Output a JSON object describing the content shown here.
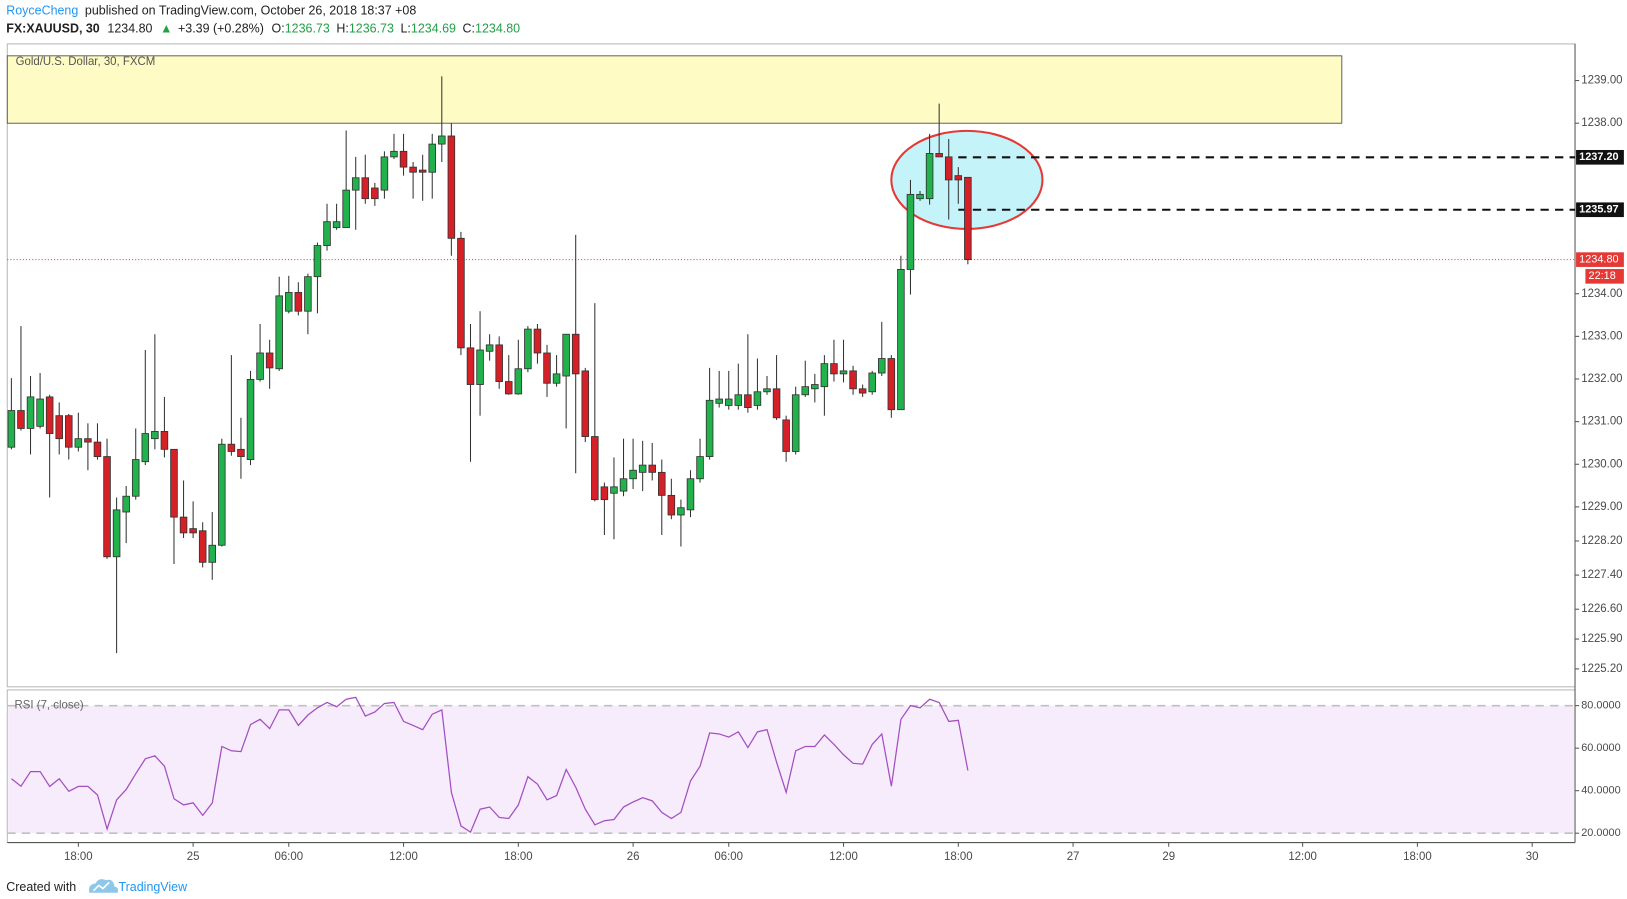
{
  "header": {
    "author": "RoyceCheng",
    "published": "published on TradingView.com, October 26, 2018 18:37 +08",
    "symbol": "FX:XAUUSD, 30",
    "price": "1234.80",
    "arrow": "▲",
    "change": "+3.39 (+0.28%)",
    "ohlc": [
      {
        "label": "O:",
        "value": "1236.73"
      },
      {
        "label": "H:",
        "value": "1236.73"
      },
      {
        "label": "L:",
        "value": "1234.69"
      },
      {
        "label": "C:",
        "value": "1234.80"
      }
    ]
  },
  "footer": {
    "created": "Created with",
    "brand": "TradingView"
  },
  "chart_data": [
    {
      "type": "candlestick",
      "up_color": "#22b14c",
      "down_color": "#d62027",
      "border_color": "#333333",
      "xlim": [
        -0.43,
        163.48
      ],
      "ylim": [
        1224.78,
        1239.86
      ],
      "yticks": [
        {
          "value": 1239,
          "label": "1239.00"
        },
        {
          "value": 1238,
          "label": "1238.00"
        },
        {
          "value": 1234,
          "label": "1234.00"
        },
        {
          "value": 1233,
          "label": "1233.00"
        },
        {
          "value": 1232,
          "label": "1232.00"
        },
        {
          "value": 1231,
          "label": "1231.00"
        },
        {
          "value": 1230,
          "label": "1230.00"
        },
        {
          "value": 1229,
          "label": "1229.00"
        },
        {
          "value": 1228.2,
          "label": "1228.20"
        },
        {
          "value": 1227.4,
          "label": "1227.40"
        },
        {
          "value": 1226.6,
          "label": "1226.60"
        },
        {
          "value": 1225.9,
          "label": "1225.90"
        },
        {
          "value": 1225.2,
          "label": "1225.20"
        }
      ],
      "x": [
        0,
        1,
        2,
        3,
        4,
        5,
        6,
        7,
        8,
        9,
        10,
        11,
        12,
        13,
        14,
        15,
        16,
        17,
        18,
        19,
        20,
        21,
        22,
        23,
        24,
        25,
        26,
        27,
        28,
        29,
        30,
        31,
        32,
        33,
        34,
        35,
        36,
        37,
        38,
        39,
        40,
        41,
        42,
        43,
        44,
        45,
        46,
        47,
        48,
        49,
        50,
        51,
        52,
        53,
        54,
        55,
        56,
        57,
        58,
        59,
        60,
        61,
        62,
        63,
        64,
        65,
        66,
        67,
        68,
        69,
        70,
        71,
        72,
        73,
        74,
        75,
        76,
        77,
        78,
        79,
        80,
        81,
        82,
        83,
        84,
        85,
        86,
        87,
        88,
        89,
        90,
        91,
        92,
        93,
        94,
        95,
        96,
        97,
        98,
        99,
        100
      ],
      "open": [
        1230.4,
        1231.26,
        1230.84,
        1230.89,
        1231.58,
        1231.14,
        1231.14,
        1230.4,
        1230.6,
        1230.52,
        1230.18,
        1227.83,
        1228.88,
        1229.25,
        1230.06,
        1230.6,
        1230.77,
        1230.35,
        1228.76,
        1228.49,
        1228.44,
        1227.7,
        1228.1,
        1230.47,
        1230.35,
        1230.11,
        1231.99,
        1232.61,
        1232.24,
        1233.59,
        1234.03,
        1233.59,
        1234.4,
        1235.13,
        1235.55,
        1235.55,
        1236.43,
        1236.72,
        1236.48,
        1236.43,
        1237.21,
        1237.34,
        1236.97,
        1236.9,
        1236.85,
        1237.51,
        1237.7,
        1235.3,
        1232.73,
        1231.87,
        1232.65,
        1232.8,
        1231.94,
        1231.65,
        1232.24,
        1233.17,
        1232.61,
        1231.9,
        1232.07,
        1233.05,
        1232.19,
        1230.65,
        1229.47,
        1229.32,
        1229.37,
        1229.66,
        1229.81,
        1229.98,
        1229.81,
        1229.27,
        1228.81,
        1228.93,
        1229.66,
        1230.18,
        1231.43,
        1231.38,
        1231.38,
        1231.63,
        1231.38,
        1231.7,
        1231.77,
        1231.04,
        1230.3,
        1231.63,
        1231.77,
        1231.82,
        1232.36,
        1232.12,
        1232.19,
        1231.77,
        1231.7,
        1232.14,
        1232.48,
        1231.28,
        1234.57,
        1236.23,
        1236.23,
        1237.29,
        1237.21,
        1236.77,
        1236.73
      ],
      "high": [
        1232.02,
        1233.24,
        1232.07,
        1232.14,
        1231.63,
        1231.45,
        1231.18,
        1231.21,
        1230.96,
        1230.96,
        1230.6,
        1229.22,
        1229.49,
        1230.84,
        1232.68,
        1233.05,
        1231.58,
        1230.35,
        1229.62,
        1229.13,
        1228.64,
        1228.88,
        1230.6,
        1232.56,
        1231.09,
        1232.19,
        1233.29,
        1232.92,
        1234.4,
        1234.42,
        1234.27,
        1234.47,
        1235.2,
        1236.11,
        1236.11,
        1237.83,
        1237.21,
        1237.26,
        1236.6,
        1237.34,
        1237.75,
        1237.75,
        1237.09,
        1237.26,
        1237.75,
        1239.1,
        1238.0,
        1235.45,
        1233.29,
        1233.59,
        1233.05,
        1233.0,
        1232.56,
        1232.92,
        1233.24,
        1233.29,
        1232.8,
        1232.56,
        1233.05,
        1235.38,
        1232.26,
        1233.78,
        1229.57,
        1230.16,
        1230.6,
        1230.6,
        1230.55,
        1230.5,
        1230.11,
        1229.66,
        1229.17,
        1229.86,
        1230.6,
        1232.26,
        1232.19,
        1232.19,
        1232.36,
        1233.05,
        1232.48,
        1232.07,
        1232.56,
        1231.14,
        1231.82,
        1232.43,
        1232.12,
        1232.56,
        1232.92,
        1232.92,
        1232.31,
        1231.87,
        1232.19,
        1233.34,
        1232.56,
        1234.89,
        1236.67,
        1236.41,
        1237.75,
        1238.46,
        1237.63,
        1236.97,
        1236.73
      ],
      "low": [
        1230.35,
        1230.79,
        1230.23,
        1230.84,
        1229.22,
        1230.23,
        1230.11,
        1230.3,
        1229.86,
        1230.11,
        1227.78,
        1225.57,
        1228.15,
        1229.17,
        1229.98,
        1230.35,
        1230.16,
        1227.66,
        1228.27,
        1228.27,
        1227.58,
        1227.29,
        1228.07,
        1230.2,
        1229.66,
        1229.98,
        1231.94,
        1231.77,
        1232.19,
        1233.54,
        1233.49,
        1233.05,
        1233.54,
        1235.01,
        1235.5,
        1235.55,
        1235.5,
        1236.11,
        1236.06,
        1236.23,
        1237.16,
        1236.77,
        1236.23,
        1236.18,
        1236.23,
        1237.09,
        1234.89,
        1232.56,
        1230.06,
        1231.14,
        1232.43,
        1231.77,
        1231.63,
        1231.63,
        1232.16,
        1232.36,
        1231.58,
        1231.82,
        1230.84,
        1229.79,
        1230.52,
        1229.13,
        1228.34,
        1228.24,
        1229.25,
        1229.42,
        1229.37,
        1229.62,
        1228.34,
        1228.71,
        1228.07,
        1228.76,
        1229.57,
        1230.11,
        1231.33,
        1231.28,
        1231.28,
        1231.21,
        1231.28,
        1231.63,
        1231.04,
        1230.06,
        1230.23,
        1231.58,
        1231.45,
        1231.14,
        1231.94,
        1231.92,
        1231.63,
        1231.58,
        1231.63,
        1232.07,
        1231.09,
        1231.28,
        1233.98,
        1236.18,
        1236.09,
        1237.21,
        1235.74,
        1236.11,
        1234.69
      ],
      "close": [
        1231.26,
        1230.84,
        1231.58,
        1231.53,
        1230.72,
        1230.6,
        1230.4,
        1230.6,
        1230.52,
        1230.18,
        1227.83,
        1228.93,
        1229.25,
        1230.11,
        1230.72,
        1230.77,
        1230.35,
        1228.76,
        1228.39,
        1228.39,
        1227.7,
        1228.1,
        1230.47,
        1230.3,
        1230.18,
        1231.99,
        1232.61,
        1232.26,
        1233.95,
        1234.03,
        1233.59,
        1234.4,
        1235.13,
        1235.69,
        1235.69,
        1236.43,
        1236.72,
        1236.23,
        1236.23,
        1237.21,
        1237.34,
        1236.97,
        1236.85,
        1236.85,
        1237.51,
        1237.7,
        1235.3,
        1232.73,
        1231.87,
        1232.68,
        1232.8,
        1231.94,
        1231.65,
        1232.24,
        1233.17,
        1232.61,
        1231.9,
        1232.12,
        1233.05,
        1232.12,
        1230.65,
        1229.17,
        1229.17,
        1229.47,
        1229.66,
        1229.86,
        1229.98,
        1229.81,
        1229.27,
        1228.81,
        1228.98,
        1229.66,
        1230.18,
        1231.5,
        1231.53,
        1231.53,
        1231.63,
        1231.33,
        1231.7,
        1231.77,
        1231.09,
        1230.3,
        1231.63,
        1231.82,
        1231.87,
        1232.36,
        1232.12,
        1232.19,
        1231.77,
        1231.67,
        1232.14,
        1232.48,
        1231.28,
        1234.57,
        1236.33,
        1236.33,
        1237.29,
        1237.21,
        1236.67,
        1236.67,
        1234.8
      ],
      "zone": {
        "label": "Gold/U.S. Dollar, 30, FXCM",
        "x": [
          -0.43,
          139.1
        ],
        "y": [
          1238.0,
          1239.58
        ],
        "color": "#fefcc4"
      },
      "ellipse": {
        "cx": 99.9,
        "cy": 1236.67,
        "rx": 7.9,
        "ry": 1.15,
        "color": "#c4f3fa",
        "stroke": "#e53935"
      },
      "levels": [
        {
          "value": 1237.2,
          "label": "1237.20",
          "from": 99
        },
        {
          "value": 1235.97,
          "label": "1235.97",
          "from": 99
        }
      ],
      "last_price": {
        "value": 1234.8,
        "label": "1234.80",
        "countdown": "22:18",
        "color": "#e53935"
      }
    },
    {
      "type": "line",
      "title": "RSI (7, close)",
      "color": "#a34fc0",
      "band": [
        20,
        80
      ],
      "band_color": "#f6ecfb",
      "xlim": [
        -0.43,
        163.48
      ],
      "ylim": [
        15.6,
        87.4
      ],
      "yticks": [
        {
          "value": 20,
          "label": "20.0000"
        },
        {
          "value": 40,
          "label": "40.0000"
        },
        {
          "value": 60,
          "label": "60.0000"
        },
        {
          "value": 80,
          "label": "80.0000"
        }
      ],
      "xticks": [
        {
          "value": 7,
          "label": "18:00"
        },
        {
          "value": 19,
          "label": "25"
        },
        {
          "value": 29,
          "label": "06:00"
        },
        {
          "value": 41,
          "label": "12:00"
        },
        {
          "value": 53,
          "label": "18:00"
        },
        {
          "value": 65,
          "label": "26"
        },
        {
          "value": 75,
          "label": "06:00"
        },
        {
          "value": 87,
          "label": "12:00"
        },
        {
          "value": 99,
          "label": "18:00"
        },
        {
          "value": 111,
          "label": "27"
        },
        {
          "value": 121,
          "label": "29"
        },
        {
          "value": 135,
          "label": "12:00"
        },
        {
          "value": 147,
          "label": "18:00"
        },
        {
          "value": 159,
          "label": "30"
        }
      ],
      "x": [
        0,
        1,
        2,
        3,
        4,
        5,
        6,
        7,
        8,
        9,
        10,
        11,
        12,
        13,
        14,
        15,
        16,
        17,
        18,
        19,
        20,
        21,
        22,
        23,
        24,
        25,
        26,
        27,
        28,
        29,
        30,
        31,
        32,
        33,
        34,
        35,
        36,
        37,
        38,
        39,
        40,
        41,
        42,
        43,
        44,
        45,
        46,
        47,
        48,
        49,
        50,
        51,
        52,
        53,
        54,
        55,
        56,
        57,
        58,
        59,
        60,
        61,
        62,
        63,
        64,
        65,
        66,
        67,
        68,
        69,
        70,
        71,
        72,
        73,
        74,
        75,
        76,
        77,
        78,
        79,
        80,
        81,
        82,
        83,
        84,
        85,
        86,
        87,
        88,
        89,
        90,
        91,
        92,
        93,
        94,
        95,
        96,
        97,
        98,
        99,
        100
      ],
      "values": [
        45.6,
        42.1,
        49,
        49,
        42,
        45.6,
        39.7,
        42,
        42,
        38,
        22,
        35.7,
        40.6,
        48,
        55,
        56.4,
        51.5,
        36.2,
        33.3,
        34.3,
        28.4,
        34.3,
        60.8,
        58.8,
        58.4,
        71.1,
        73.6,
        69.2,
        78,
        78,
        70.7,
        75.6,
        79,
        81.5,
        79.5,
        83,
        83.9,
        75.1,
        77,
        81,
        81.5,
        72.6,
        70.7,
        68.7,
        76,
        78,
        39.2,
        23.4,
        20.5,
        31.3,
        32.3,
        27.4,
        26.9,
        33.3,
        46.6,
        43.1,
        35.7,
        37.7,
        50,
        41.6,
        31.3,
        23.9,
        25.9,
        26.4,
        32.3,
        34.7,
        36.7,
        35.2,
        29.8,
        26.9,
        29.8,
        44.6,
        51.5,
        67.2,
        66.7,
        65.2,
        67.7,
        60.3,
        67.7,
        68.7,
        53.4,
        39.2,
        58.8,
        60.8,
        60.8,
        66.2,
        61.8,
        56.9,
        52.9,
        52.5,
        61.8,
        66.7,
        42.1,
        73.6,
        80,
        79,
        83,
        81.5,
        72.6,
        73.1,
        49.5
      ]
    }
  ]
}
